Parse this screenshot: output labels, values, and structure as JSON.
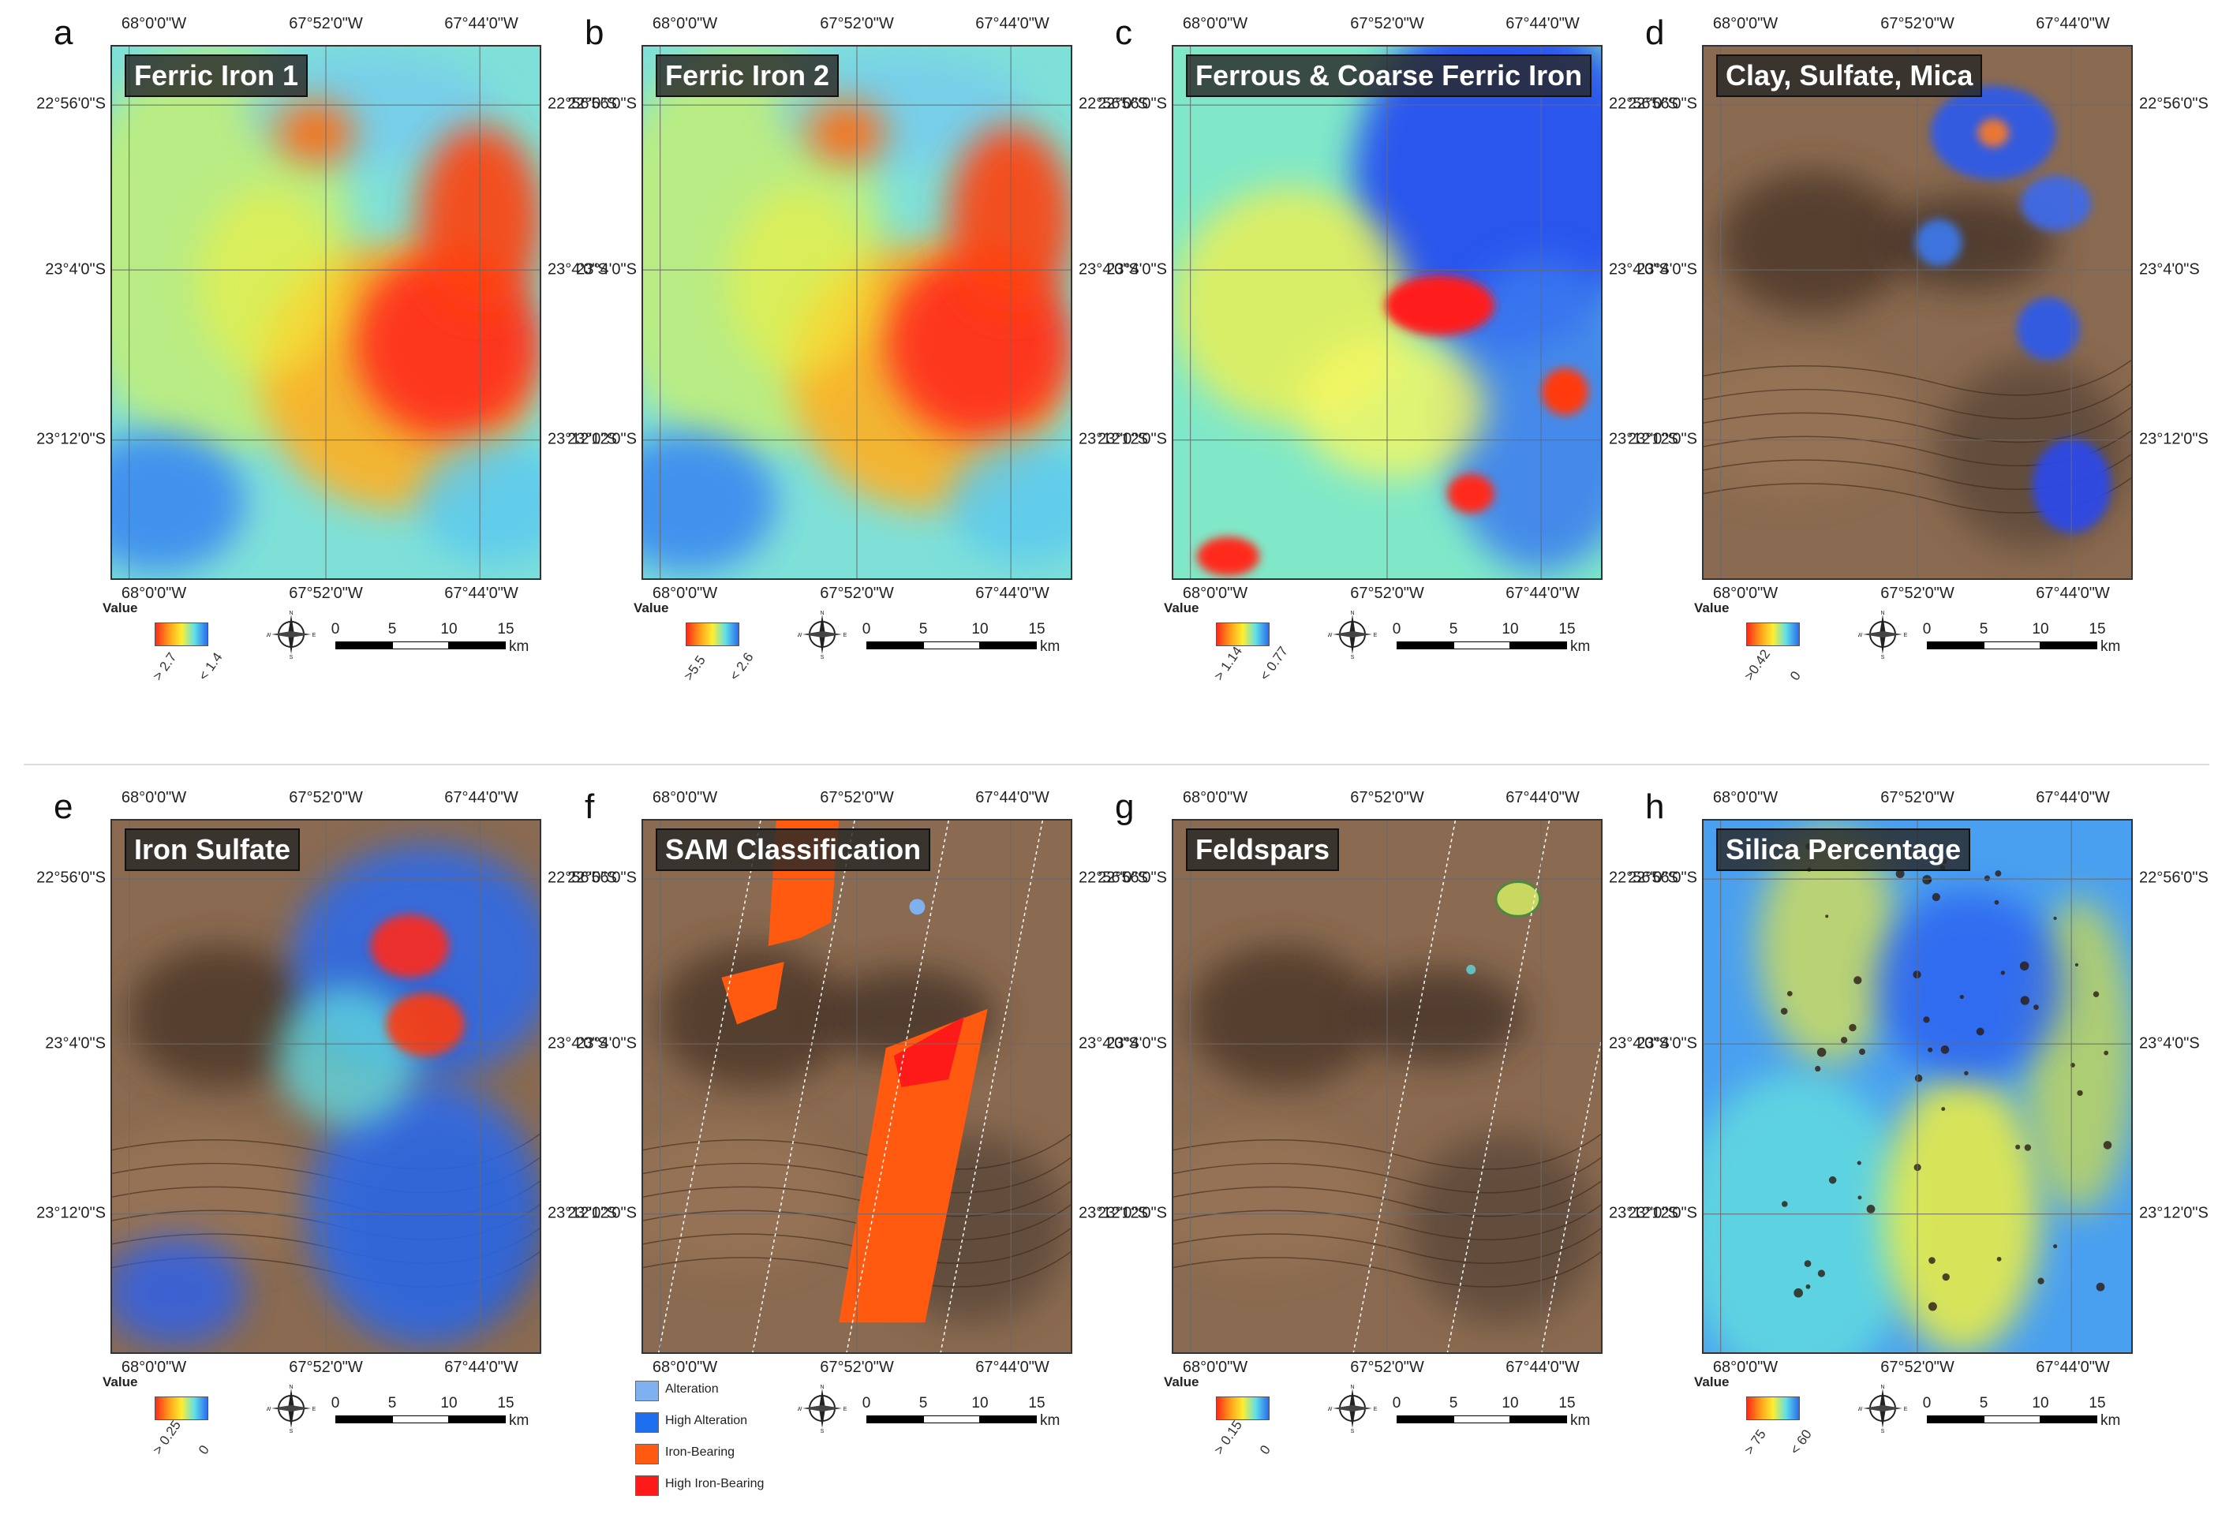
{
  "figure": {
    "panels": [
      {
        "letter": "a",
        "title": "Ferric Iron 1",
        "legend_title": "Value",
        "ramp_high": "> 2.7",
        "ramp_low": "< 1.4",
        "style": "index"
      },
      {
        "letter": "b",
        "title": "Ferric Iron 2",
        "legend_title": "Value",
        "ramp_high": ">5.5",
        "ramp_low": "< 2.6",
        "style": "index"
      },
      {
        "letter": "c",
        "title": "Ferrous & Coarse Ferric Iron",
        "legend_title": "Value",
        "ramp_high": "> 1.14",
        "ramp_low": "< 0.77",
        "style": "ferrous"
      },
      {
        "letter": "d",
        "title": "Clay, Sulfate, Mica",
        "legend_title": "Value",
        "ramp_high": ">0.42",
        "ramp_low": "0",
        "style": "brown"
      },
      {
        "letter": "e",
        "title": "Iron Sulfate",
        "legend_title": "Value",
        "ramp_high": "> 0.25",
        "ramp_low": "0",
        "style": "sulfate"
      },
      {
        "letter": "f",
        "title": "SAM Classification",
        "legend_title": "",
        "ramp_high": "",
        "ramp_low": "",
        "style": "sam"
      },
      {
        "letter": "g",
        "title": "Feldspars",
        "legend_title": "Value",
        "ramp_high": "> 0.15",
        "ramp_low": "0",
        "style": "feldspar"
      },
      {
        "letter": "h",
        "title": "Silica Percentage",
        "legend_title": "Value",
        "ramp_high": "> 75",
        "ramp_low": "< 60",
        "style": "silica"
      }
    ],
    "lon_labels": [
      "68°0'0\"W",
      "67°52'0\"W",
      "67°44'0\"W"
    ],
    "lat_labels": [
      "22°56'0\"S",
      "23°4'0\"S",
      "23°12'0\"S"
    ],
    "scale": {
      "ticks": [
        "0",
        "5",
        "10",
        "15"
      ],
      "unit": "km"
    },
    "compass": {
      "n": "N",
      "s": "S",
      "e": "E",
      "w": "W"
    },
    "sam_legend": [
      {
        "label": "Alteration",
        "color": "#7fb0f0"
      },
      {
        "label": "High Alteration",
        "color": "#1e6ef0"
      },
      {
        "label": "Iron-Bearing",
        "color": "#ff5a10"
      },
      {
        "label": "High Iron-Bearing",
        "color": "#ff1a1a"
      }
    ],
    "colors": {
      "ramp": [
        "#ff2a1a",
        "#ff9a1a",
        "#ffee30",
        "#5ee0e8",
        "#2a6af0"
      ],
      "terrain_brown": "#8a6a50",
      "frame": "#333333"
    }
  }
}
